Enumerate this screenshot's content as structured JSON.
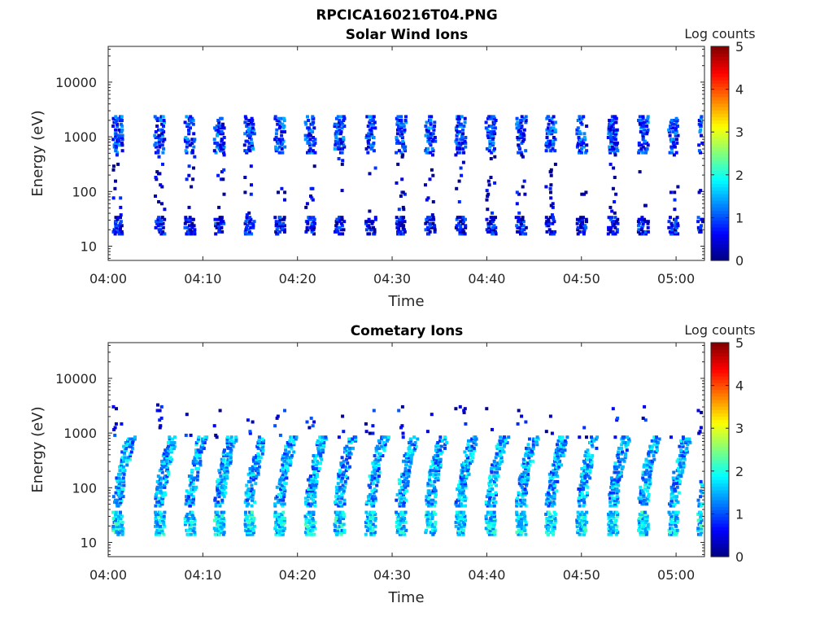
{
  "figure_title": "RPCICA160216T04.PNG",
  "chart_data": [
    {
      "type": "heatmap",
      "title": "Solar Wind Ions",
      "xlabel": "Time",
      "ylabel": "Energy (eV)",
      "x_ticks": [
        "04:00",
        "04:10",
        "04:20",
        "04:30",
        "04:40",
        "04:50",
        "05:00"
      ],
      "xlim": [
        "04:00",
        "05:03"
      ],
      "y_scale": "log",
      "y_ticks": [
        10,
        100,
        1000,
        10000
      ],
      "y_tick_labels": [
        "10",
        "100",
        "1000",
        "10000"
      ],
      "ylim": [
        5.5,
        45000
      ],
      "colorbar": {
        "label": "Log counts",
        "range": [
          0,
          5
        ],
        "ticks": [
          "0",
          "1",
          "2",
          "3",
          "4",
          "5"
        ],
        "colormap": "jet"
      },
      "sweep_minutes": [
        0.5,
        4.9,
        8.1,
        11.2,
        14.4,
        17.6,
        20.8,
        23.9,
        27.2,
        30.4,
        33.5,
        36.7,
        39.9,
        43.1,
        46.2,
        49.5,
        52.8,
        56.0,
        59.2,
        62.3
      ],
      "bands": [
        {
          "e_min": 550,
          "e_max": 2500,
          "level": 0.9,
          "density": 0.55,
          "note": "solar wind peak"
        },
        {
          "e_min": 18,
          "e_max": 36,
          "level": 0.6,
          "density": 0.75,
          "note": "low-energy band"
        },
        {
          "e_min": 40,
          "e_max": 500,
          "level": 0.3,
          "density": 0.05,
          "note": "sparse counts"
        }
      ]
    },
    {
      "type": "heatmap",
      "title": "Cometary Ions",
      "xlabel": "Time",
      "ylabel": "Energy (eV)",
      "x_ticks": [
        "04:00",
        "04:10",
        "04:20",
        "04:30",
        "04:40",
        "04:50",
        "05:00"
      ],
      "xlim": [
        "04:00",
        "05:03"
      ],
      "y_scale": "log",
      "y_ticks": [
        10,
        100,
        1000,
        10000
      ],
      "y_tick_labels": [
        "10",
        "100",
        "1000",
        "10000"
      ],
      "ylim": [
        5.5,
        45000
      ],
      "colorbar": {
        "label": "Log counts",
        "range": [
          0,
          5
        ],
        "ticks": [
          "0",
          "1",
          "2",
          "3",
          "4",
          "5"
        ],
        "colormap": "jet"
      },
      "sweep_minutes": [
        0.5,
        4.9,
        8.1,
        11.2,
        14.4,
        17.6,
        20.8,
        23.9,
        27.2,
        30.4,
        33.5,
        36.7,
        39.9,
        43.1,
        46.2,
        49.5,
        52.8,
        56.0,
        59.2,
        62.3
      ],
      "bands": [
        {
          "e_min": 50,
          "e_max": 900,
          "level": 1.4,
          "density": 0.6,
          "note": "curved cometary ion arcs"
        },
        {
          "e_min": 15,
          "e_max": 38,
          "level": 1.7,
          "density": 0.85,
          "note": "low-energy band"
        },
        {
          "e_min": 900,
          "e_max": 3500,
          "level": 0.5,
          "density": 0.06,
          "note": "sparse high-energy counts"
        }
      ]
    }
  ]
}
